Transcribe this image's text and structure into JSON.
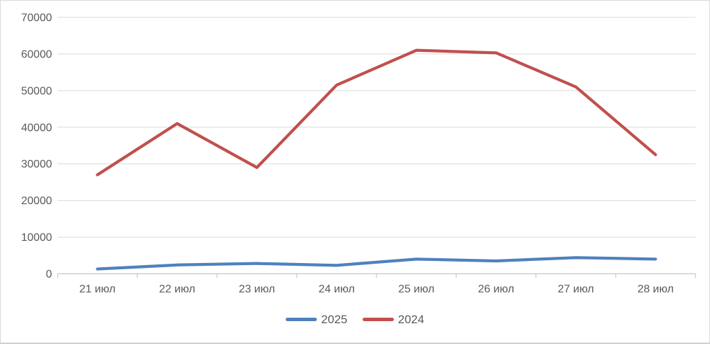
{
  "chart_data": {
    "type": "line",
    "title": "",
    "xlabel": "",
    "ylabel": "",
    "categories": [
      "21 июл",
      "22 июл",
      "23 июл",
      "24 июл",
      "25 июл",
      "26 июл",
      "27 июл",
      "28 июл"
    ],
    "series": [
      {
        "name": "2025",
        "color": "#4F81BD",
        "values": [
          1300,
          2400,
          2800,
          2300,
          4000,
          3500,
          4400,
          4000
        ]
      },
      {
        "name": "2024",
        "color": "#C0504D",
        "values": [
          27000,
          41000,
          29000,
          51500,
          61000,
          60300,
          51000,
          32500
        ]
      }
    ],
    "ylim": [
      0,
      70000
    ],
    "y_tick_step": 10000,
    "y_tick_labels": [
      "0",
      "10000",
      "20000",
      "30000",
      "40000",
      "50000",
      "60000",
      "70000"
    ],
    "grid": "horizontal",
    "gridline_color": "#D9D9D9",
    "axis_line_color": "#C8C8C8",
    "text_color": "#595959",
    "legend_position": "bottom"
  }
}
